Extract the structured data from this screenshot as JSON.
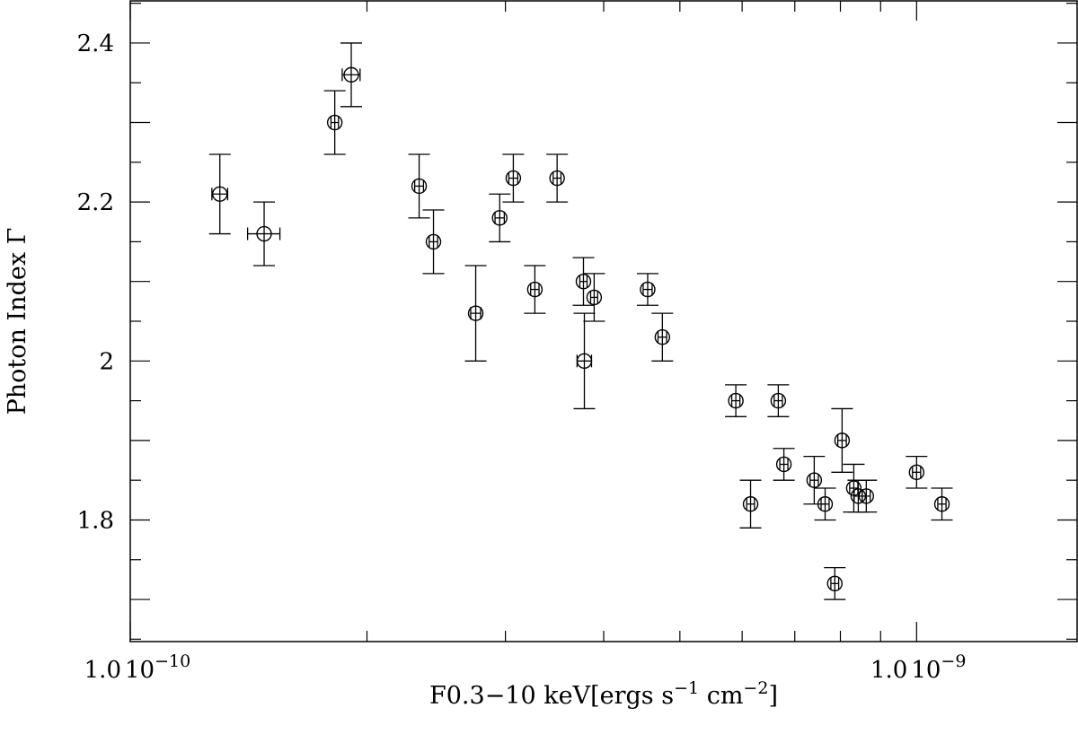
{
  "chart_data": {
    "type": "scatter",
    "xlabel": "F0.3-10 keV[ergs s-1 cm-2]",
    "xlabel_parts": {
      "main": "F0.3−10 keV[ergs s",
      "exp1": "−1",
      "mid": " cm",
      "exp2": "−2",
      "end": "]"
    },
    "ylabel": "Photon Index Γ",
    "x_scale": "log",
    "xlim": [
      1e-10,
      1.6e-09
    ],
    "ylim": [
      1.647,
      2.453
    ],
    "x_tick_labels": [
      {
        "value": 1e-10,
        "mantissa": "1.0",
        "base": "10",
        "exp": "−10"
      },
      {
        "value": 1e-09,
        "mantissa": "1.0",
        "base": "10",
        "exp": "−9"
      }
    ],
    "y_tick_labels": [
      {
        "value": 1.8,
        "label": "1.8"
      },
      {
        "value": 2.0,
        "label": "2"
      },
      {
        "value": 2.2,
        "label": "2.2"
      },
      {
        "value": 2.4,
        "label": "2.4"
      }
    ],
    "grid": false,
    "marker": "open-circle",
    "color": "#000000",
    "points": [
      {
        "x": 1.3e-10,
        "y": 2.21,
        "xerr": 3e-12,
        "yerr": 0.05
      },
      {
        "x": 1.48e-10,
        "y": 2.16,
        "xerr": 7e-12,
        "yerr": 0.04
      },
      {
        "x": 1.82e-10,
        "y": 2.3,
        "xerr": 2e-12,
        "yerr": 0.04
      },
      {
        "x": 1.91e-10,
        "y": 2.36,
        "xerr": 5e-12,
        "yerr": 0.04
      },
      {
        "x": 2.33e-10,
        "y": 2.22,
        "xerr": 3e-12,
        "yerr": 0.04
      },
      {
        "x": 2.43e-10,
        "y": 2.15,
        "xerr": 3e-12,
        "yerr": 0.04
      },
      {
        "x": 2.75e-10,
        "y": 2.06,
        "xerr": 4e-12,
        "yerr": 0.06
      },
      {
        "x": 2.95e-10,
        "y": 2.18,
        "xerr": 4e-12,
        "yerr": 0.03
      },
      {
        "x": 3.07e-10,
        "y": 2.23,
        "xerr": 4e-12,
        "yerr": 0.03
      },
      {
        "x": 3.27e-10,
        "y": 2.09,
        "xerr": 4e-12,
        "yerr": 0.03
      },
      {
        "x": 3.49e-10,
        "y": 2.23,
        "xerr": 4e-12,
        "yerr": 0.03
      },
      {
        "x": 3.77e-10,
        "y": 2.1,
        "xerr": 4e-12,
        "yerr": 0.03
      },
      {
        "x": 3.78e-10,
        "y": 2.0,
        "xerr": 8e-12,
        "yerr": 0.06
      },
      {
        "x": 3.89e-10,
        "y": 2.08,
        "xerr": 4e-12,
        "yerr": 0.03
      },
      {
        "x": 4.55e-10,
        "y": 2.09,
        "xerr": 6e-12,
        "yerr": 0.02
      },
      {
        "x": 4.75e-10,
        "y": 2.03,
        "xerr": 6e-12,
        "yerr": 0.03
      },
      {
        "x": 5.89e-10,
        "y": 1.95,
        "xerr": 7e-12,
        "yerr": 0.02
      },
      {
        "x": 6.15e-10,
        "y": 1.82,
        "xerr": 7e-12,
        "yerr": 0.03
      },
      {
        "x": 6.67e-10,
        "y": 1.95,
        "xerr": 8e-12,
        "yerr": 0.02
      },
      {
        "x": 6.78e-10,
        "y": 1.87,
        "xerr": 8e-12,
        "yerr": 0.02
      },
      {
        "x": 7.41e-10,
        "y": 1.85,
        "xerr": 9e-12,
        "yerr": 0.03
      },
      {
        "x": 7.65e-10,
        "y": 1.82,
        "xerr": 9e-12,
        "yerr": 0.02
      },
      {
        "x": 7.87e-10,
        "y": 1.72,
        "xerr": 9e-12,
        "yerr": 0.02
      },
      {
        "x": 8.04e-10,
        "y": 1.9,
        "xerr": 1e-11,
        "yerr": 0.04
      },
      {
        "x": 8.32e-10,
        "y": 1.84,
        "xerr": 1e-11,
        "yerr": 0.03
      },
      {
        "x": 8.43e-10,
        "y": 1.83,
        "xerr": 1e-11,
        "yerr": 0.02
      },
      {
        "x": 8.63e-10,
        "y": 1.83,
        "xerr": 1e-11,
        "yerr": 0.02
      },
      {
        "x": 1e-09,
        "y": 1.86,
        "xerr": 1.2e-11,
        "yerr": 0.02
      },
      {
        "x": 1.077e-09,
        "y": 1.82,
        "xerr": 1.3e-11,
        "yerr": 0.02
      }
    ]
  }
}
